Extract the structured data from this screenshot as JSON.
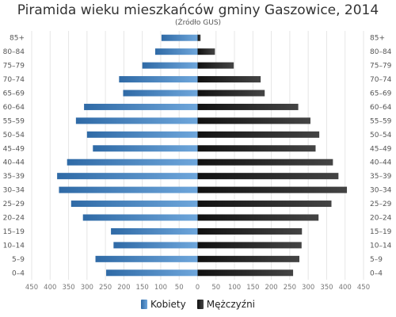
{
  "chart_data": {
    "type": "bar",
    "title": "Piramida wieku mieszkańców gminy Gaszowice, 2014",
    "subtitle": "(Źródło GUS)",
    "categories": [
      "85+",
      "80–84",
      "75–79",
      "70–74",
      "65–69",
      "60–64",
      "55–59",
      "50–54",
      "45–49",
      "40–44",
      "35–39",
      "30–34",
      "25–29",
      "20–24",
      "15–19",
      "10–14",
      "5–9",
      "0–4"
    ],
    "series": [
      {
        "name": "Kobiety",
        "values": [
          98,
          115,
          150,
          213,
          202,
          308,
          330,
          300,
          284,
          354,
          381,
          376,
          343,
          311,
          235,
          228,
          277,
          248
        ],
        "color": "#4a86c4"
      },
      {
        "name": "Mężczyźni",
        "values": [
          8,
          47,
          98,
          171,
          182,
          273,
          306,
          330,
          320,
          367,
          382,
          405,
          363,
          328,
          283,
          282,
          276,
          259
        ],
        "color": "#222222"
      }
    ],
    "xlim": [
      -450,
      450
    ],
    "x_ticks": [
      "450",
      "400",
      "350",
      "300",
      "250",
      "200",
      "150",
      "100",
      "50",
      "0",
      "50",
      "100",
      "150",
      "200",
      "250",
      "300",
      "350",
      "400",
      "450"
    ],
    "grid": true,
    "legend_position": "bottom"
  }
}
